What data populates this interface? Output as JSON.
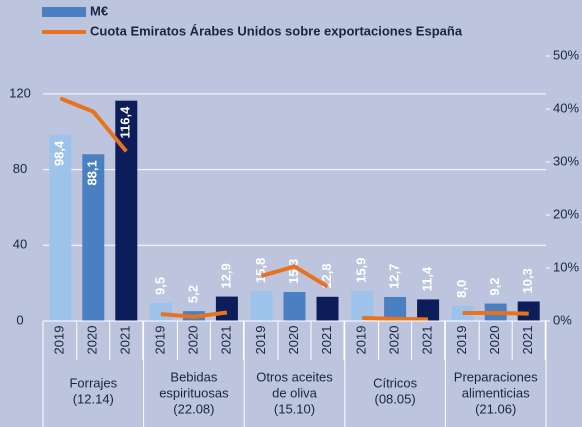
{
  "chart_data": {
    "type": "bar_line",
    "legend": [
      {
        "name": "M€",
        "color": "#4a7fc1",
        "kind": "bar"
      },
      {
        "name": "Cuota Emiratos Árabes Unidos sobre exportaciones España",
        "color": "#e8731e",
        "kind": "line"
      }
    ],
    "years": [
      "2019",
      "2020",
      "2021"
    ],
    "year_colors": [
      "#9dc3ea",
      "#4a7fc1",
      "#0c1d5a"
    ],
    "categories": [
      [
        "Forrajes",
        "(12.14)"
      ],
      [
        "Bebidas",
        "espirituosas",
        "(22.08)"
      ],
      [
        "Otros aceites",
        "de oliva",
        "(15.10)"
      ],
      [
        "Cítricos",
        "(08.05)"
      ],
      [
        "Preparaciones",
        "alimenticias",
        "(21.06)"
      ]
    ],
    "bar_values": [
      [
        98.4,
        88.1,
        116.4
      ],
      [
        9.5,
        5.2,
        12.9
      ],
      [
        15.8,
        15.3,
        12.8
      ],
      [
        15.9,
        12.7,
        11.4
      ],
      [
        8.0,
        9.2,
        10.3
      ]
    ],
    "value_labels": [
      [
        "98,4",
        "88,1",
        "116,4"
      ],
      [
        "9,5",
        "5,2",
        "12,9"
      ],
      [
        "15,8",
        "15,3",
        "12,8"
      ],
      [
        "15,9",
        "12,7",
        "11,4"
      ],
      [
        "8,0",
        "9,2",
        "10,3"
      ]
    ],
    "line_values": [
      [
        42,
        39.5,
        32
      ],
      [
        1.3,
        0.8,
        1.6
      ],
      [
        8.5,
        10.3,
        6.5
      ],
      [
        0.6,
        0.4,
        0.3
      ],
      [
        1.5,
        1.5,
        1.4
      ]
    ],
    "ylim": [
      0,
      140
    ],
    "yticks": [
      0,
      40,
      80,
      120
    ],
    "y2lim": [
      0,
      50
    ],
    "y2ticks": [
      {
        "value": 0,
        "label": "0%"
      },
      {
        "value": 10,
        "label": "10%"
      },
      {
        "value": 20,
        "label": "20%"
      },
      {
        "value": 30,
        "label": "30%"
      },
      {
        "value": 40,
        "label": "40%"
      },
      {
        "value": 50,
        "label": "50%"
      }
    ],
    "grid": true
  }
}
